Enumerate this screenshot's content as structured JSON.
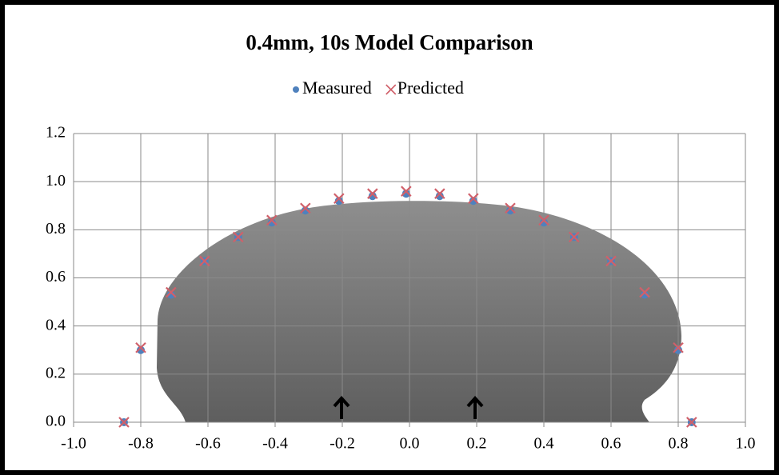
{
  "chart_data": {
    "type": "scatter",
    "title": "0.4mm, 10s Model Comparison",
    "series": [
      {
        "name": "Measured",
        "color": "#4f81bd",
        "marker": "circle",
        "x": [
          -0.85,
          -0.8,
          -0.71,
          -0.61,
          -0.51,
          -0.41,
          -0.31,
          -0.21,
          -0.11,
          -0.01,
          0.09,
          0.19,
          0.3,
          0.4,
          0.49,
          0.6,
          0.7,
          0.8,
          0.84
        ],
        "values": [
          0,
          0.3,
          0.53,
          0.67,
          0.77,
          0.83,
          0.88,
          0.92,
          0.94,
          0.95,
          0.94,
          0.92,
          0.88,
          0.83,
          0.77,
          0.67,
          0.53,
          0.3,
          0
        ]
      },
      {
        "name": "Predicted",
        "color": "#d0606a",
        "marker": "x",
        "x": [
          -0.85,
          -0.8,
          -0.71,
          -0.61,
          -0.51,
          -0.41,
          -0.31,
          -0.21,
          -0.11,
          -0.01,
          0.09,
          0.19,
          0.3,
          0.4,
          0.49,
          0.6,
          0.7,
          0.8,
          0.84
        ],
        "values": [
          0,
          0.31,
          0.54,
          0.67,
          0.77,
          0.84,
          0.89,
          0.93,
          0.95,
          0.96,
          0.95,
          0.93,
          0.89,
          0.84,
          0.77,
          0.67,
          0.54,
          0.31,
          0
        ]
      }
    ],
    "xlim": [
      -1.0,
      1.0
    ],
    "xticks": [
      {
        "value": -1,
        "label": "-1.0"
      },
      -0.8,
      -0.6,
      -0.4,
      -0.2,
      {
        "value": 0,
        "label": "0.0"
      },
      0.2,
      0.4,
      0.6,
      0.8,
      {
        "value": 1,
        "label": "1.0"
      }
    ],
    "ylim": [
      0,
      1.2
    ],
    "yticks": [
      {
        "value": 0,
        "label": "0.0"
      },
      0.2,
      0.4,
      0.6,
      0.8,
      {
        "value": 1,
        "label": "1.0"
      },
      1.2
    ],
    "grid": true,
    "legend": "top"
  }
}
